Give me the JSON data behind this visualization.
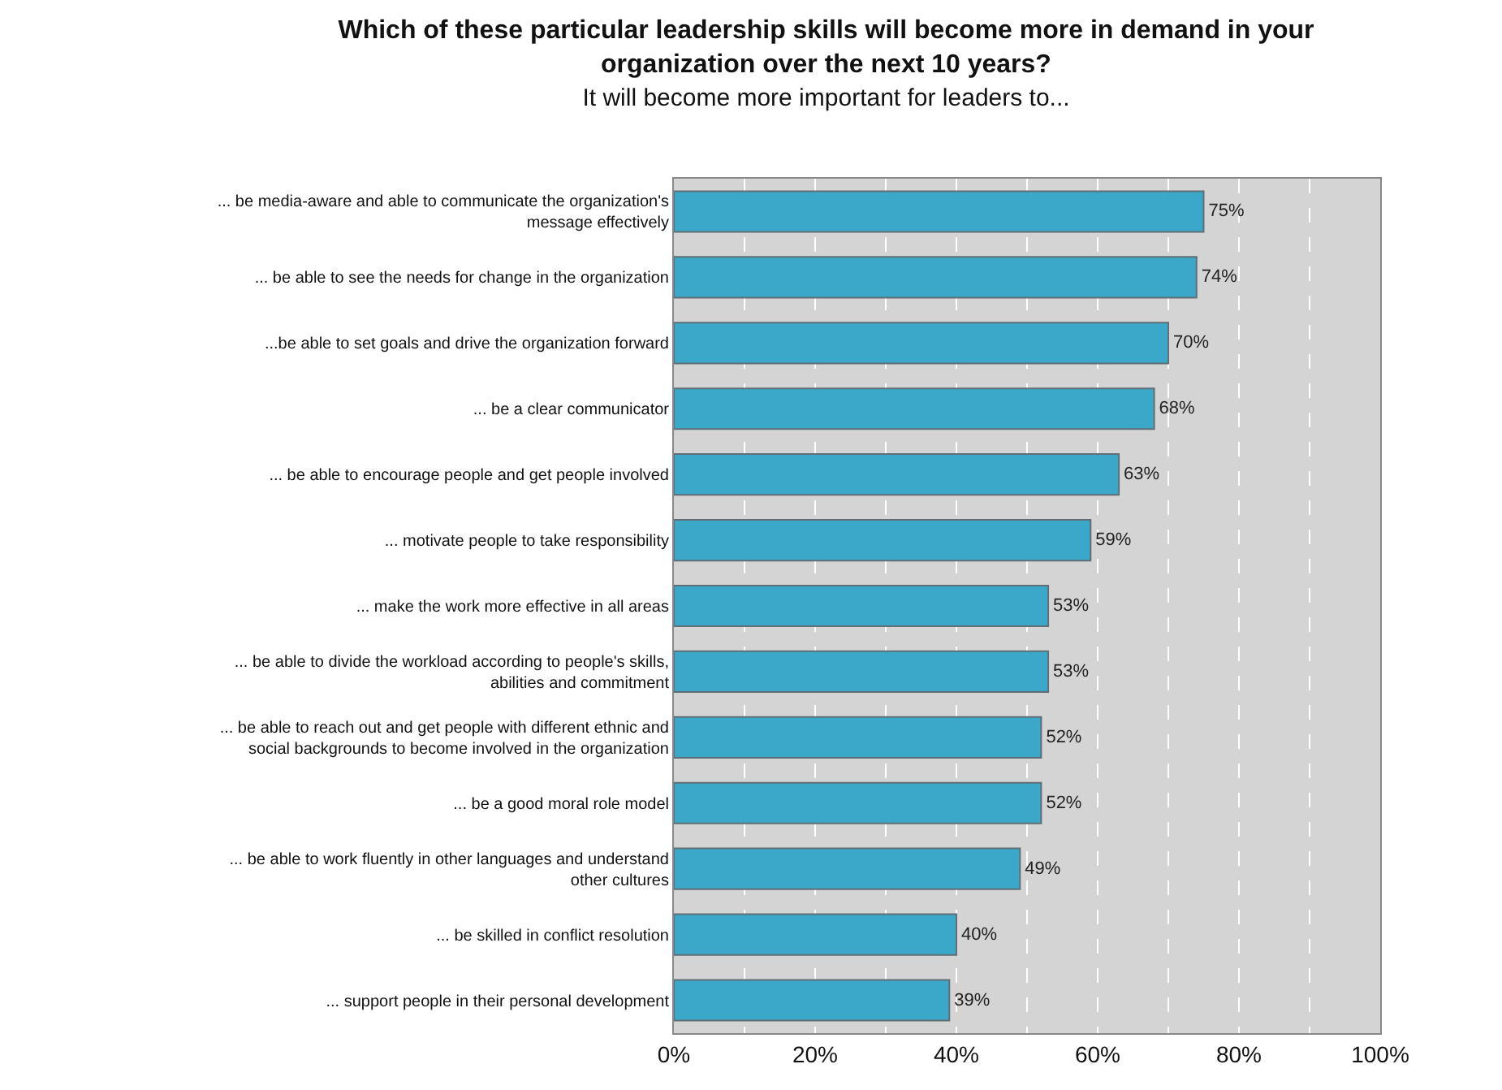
{
  "chart_data": {
    "type": "bar",
    "orientation": "horizontal",
    "title": "Which of these particular leadership skills will become more in demand in your\norganization over the next 10 years?",
    "subtitle": "It will become more important for leaders to...",
    "categories": [
      "... be media-aware and able to communicate the organization's\nmessage effectively",
      "... be able to see the needs for change in the organization",
      "...be able to set goals and drive the organization forward",
      "... be a clear communicator",
      "... be able to encourage people and get people involved",
      "... motivate people to take responsibility",
      "... make the work more effective in all areas",
      "... be able to divide the workload according to people's skills,\nabilities and commitment",
      "... be able to reach out and get people with different ethnic and\nsocial backgrounds to become involved in the organization",
      "... be a good moral role model",
      "... be able to work fluently in other languages and understand\nother cultures",
      "... be skilled in conflict resolution",
      "... support people in their personal development"
    ],
    "values": [
      75,
      74,
      70,
      68,
      63,
      59,
      53,
      53,
      52,
      52,
      49,
      40,
      39
    ],
    "value_labels": [
      "75%",
      "74%",
      "70%",
      "68%",
      "63%",
      "59%",
      "53%",
      "53%",
      "52%",
      "52%",
      "49%",
      "40%",
      "39%"
    ],
    "color": "#3ba7c9",
    "xlim": [
      0,
      100
    ],
    "xticks": [
      {
        "value": 0,
        "label": "0%"
      },
      {
        "value": 10,
        "label": null
      },
      {
        "value": 20,
        "label": "20%"
      },
      {
        "value": 30,
        "label": null
      },
      {
        "value": 40,
        "label": "40%"
      },
      {
        "value": 50,
        "label": null
      },
      {
        "value": 60,
        "label": "60%"
      },
      {
        "value": 70,
        "label": null
      },
      {
        "value": 80,
        "label": "80%"
      },
      {
        "value": 90,
        "label": null
      },
      {
        "value": 100,
        "label": "100%"
      }
    ],
    "grid": "x"
  }
}
